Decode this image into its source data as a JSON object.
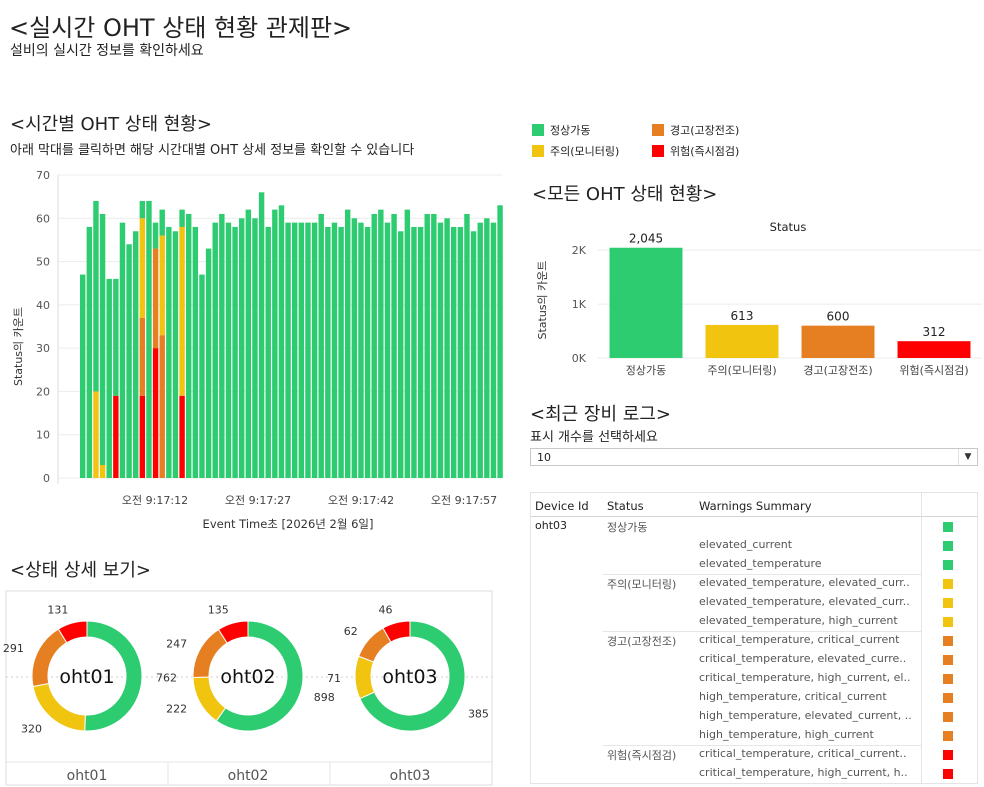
{
  "page": {
    "title": "<실시간 OHT 상태 현황 관제판>",
    "subtitle": "설비의 실시간 정보를 확인하세요"
  },
  "colors": {
    "normal": "#2ecc71",
    "warning": "#f1c40f",
    "fault": "#e67e22",
    "danger": "#ff0000"
  },
  "legend": {
    "items": [
      {
        "label": "정상가동",
        "color": "#2ecc71"
      },
      {
        "label": "경고(고장전조)",
        "color": "#e67e22"
      },
      {
        "label": "주의(모니터링)",
        "color": "#f1c40f"
      },
      {
        "label": "위험(즉시점검)",
        "color": "#ff0000"
      }
    ]
  },
  "timeline": {
    "title": "<시간별 OHT 상태 현황>",
    "description": "아래 막대를 클릭하면 해당 시간대별 OHT 상세 정보를 확인할 수 있습니다",
    "chart_data": {
      "type": "bar",
      "stacked": true,
      "title": "",
      "xlabel": "Event Time초 [2026년 2월 6일]",
      "ylabel": "Status의 카운트",
      "ylim": [
        0,
        70
      ],
      "yticks": [
        0,
        10,
        20,
        30,
        40,
        50,
        60,
        70
      ],
      "xtick_labels": [
        "오전 9:17:12",
        "오전 9:17:27",
        "오전 9:17:42",
        "오전 9:17:57"
      ],
      "series_order": [
        "위험(즉시점검)",
        "경고(고장전조)",
        "주의(모니터링)",
        "정상가동"
      ],
      "bars": [
        [
          0,
          0,
          0,
          47
        ],
        [
          0,
          0,
          0,
          58
        ],
        [
          0,
          0,
          20,
          44
        ],
        [
          0,
          0,
          3,
          58
        ],
        [
          0,
          0,
          0,
          46
        ],
        [
          19,
          0,
          0,
          27
        ],
        [
          0,
          0,
          0,
          59
        ],
        [
          0,
          0,
          0,
          54
        ],
        [
          0,
          0,
          0,
          57
        ],
        [
          19,
          18,
          23,
          4
        ],
        [
          0,
          0,
          0,
          64
        ],
        [
          30,
          23,
          0,
          6
        ],
        [
          0,
          33,
          23,
          6
        ],
        [
          0,
          0,
          0,
          58
        ],
        [
          0,
          0,
          0,
          57
        ],
        [
          19,
          0,
          39,
          4
        ],
        [
          0,
          0,
          0,
          61
        ],
        [
          0,
          0,
          0,
          58
        ],
        [
          0,
          0,
          0,
          47
        ],
        [
          0,
          0,
          0,
          53
        ],
        [
          0,
          0,
          0,
          59
        ],
        [
          0,
          0,
          0,
          61
        ],
        [
          0,
          0,
          0,
          59
        ],
        [
          0,
          0,
          0,
          58
        ],
        [
          0,
          0,
          0,
          60
        ],
        [
          0,
          0,
          0,
          62
        ],
        [
          0,
          0,
          0,
          60
        ],
        [
          0,
          0,
          0,
          66
        ],
        [
          0,
          0,
          0,
          58
        ],
        [
          0,
          0,
          0,
          62
        ],
        [
          0,
          0,
          0,
          63
        ],
        [
          0,
          0,
          0,
          59
        ],
        [
          0,
          0,
          0,
          59
        ],
        [
          0,
          0,
          0,
          59
        ],
        [
          0,
          0,
          0,
          59
        ],
        [
          0,
          0,
          0,
          59
        ],
        [
          0,
          0,
          0,
          61
        ],
        [
          0,
          0,
          0,
          58
        ],
        [
          0,
          0,
          0,
          59
        ],
        [
          0,
          0,
          0,
          58
        ],
        [
          0,
          0,
          0,
          62
        ],
        [
          0,
          0,
          0,
          60
        ],
        [
          0,
          0,
          0,
          59
        ],
        [
          0,
          0,
          0,
          58
        ],
        [
          0,
          0,
          0,
          61
        ],
        [
          0,
          0,
          0,
          62
        ],
        [
          0,
          0,
          0,
          59
        ],
        [
          0,
          0,
          0,
          61
        ],
        [
          0,
          0,
          0,
          57
        ],
        [
          0,
          0,
          0,
          62
        ],
        [
          0,
          0,
          0,
          58
        ],
        [
          0,
          0,
          0,
          58
        ],
        [
          0,
          0,
          0,
          61
        ],
        [
          0,
          0,
          0,
          61
        ],
        [
          0,
          0,
          0,
          59
        ],
        [
          0,
          0,
          0,
          60
        ],
        [
          0,
          0,
          0,
          58
        ],
        [
          0,
          0,
          0,
          58
        ],
        [
          0,
          0,
          0,
          61
        ],
        [
          0,
          0,
          0,
          57
        ],
        [
          0,
          0,
          0,
          59
        ],
        [
          0,
          0,
          0,
          60
        ],
        [
          0,
          0,
          0,
          59
        ],
        [
          0,
          0,
          0,
          63
        ]
      ]
    }
  },
  "overall": {
    "title": "<모든 OHT 상태 현황>",
    "chart_data": {
      "type": "bar",
      "title": "Status",
      "xlabel": "",
      "ylabel": "Status의 카운트",
      "ylim": [
        0,
        2300
      ],
      "ytick_labels": [
        "0K",
        "1K",
        "2K"
      ],
      "yticks": [
        0,
        1000,
        2000
      ],
      "categories": [
        "정상가동",
        "주의(모니터링)",
        "경고(고장전조)",
        "위험(즉시점검)"
      ],
      "values": [
        2045,
        613,
        600,
        312
      ],
      "value_labels": [
        "2,045",
        "613",
        "600",
        "312"
      ]
    }
  },
  "detail": {
    "title": "<상태 상세 보기>",
    "chart_data": [
      {
        "type": "pie",
        "title": "oht01",
        "center_label": "oht01",
        "categories": [
          "정상가동",
          "주의(모니터링)",
          "경고(고장전조)",
          "위험(즉시점검)"
        ],
        "values": [
          762,
          320,
          291,
          131
        ]
      },
      {
        "type": "pie",
        "title": "oht02",
        "center_label": "oht02",
        "categories": [
          "정상가동",
          "주의(모니터링)",
          "경고(고장전조)",
          "위험(즉시점검)"
        ],
        "values": [
          898,
          222,
          247,
          135
        ]
      },
      {
        "type": "pie",
        "title": "oht03",
        "center_label": "oht03",
        "categories": [
          "정상가동",
          "주의(모니터링)",
          "경고(고장전조)",
          "위험(즉시점검)"
        ],
        "values": [
          385,
          71,
          62,
          46
        ]
      }
    ]
  },
  "logs": {
    "title": "<최근 장비 로그>",
    "select_label": "표시 개수를 선택하세요",
    "select_value": "10",
    "columns": [
      "Device Id",
      "Status",
      "Warnings Summary"
    ],
    "rows": [
      {
        "device": "oht03",
        "status": "정상가동",
        "warning": "",
        "color": "#2ecc71"
      },
      {
        "device": "",
        "status": "",
        "warning": "elevated_current",
        "color": "#2ecc71"
      },
      {
        "device": "",
        "status": "",
        "warning": "elevated_temperature",
        "color": "#2ecc71"
      },
      {
        "device": "",
        "status": "주의(모니터링)",
        "warning": "elevated_temperature, elevated_curr..",
        "color": "#f1c40f"
      },
      {
        "device": "",
        "status": "",
        "warning": "elevated_temperature, elevated_curr..",
        "color": "#f1c40f"
      },
      {
        "device": "",
        "status": "",
        "warning": "elevated_temperature, high_current",
        "color": "#f1c40f"
      },
      {
        "device": "",
        "status": "경고(고장전조)",
        "warning": "critical_temperature, critical_current",
        "color": "#e67e22"
      },
      {
        "device": "",
        "status": "",
        "warning": "critical_temperature, elevated_curre..",
        "color": "#e67e22"
      },
      {
        "device": "",
        "status": "",
        "warning": "critical_temperature, high_current, el..",
        "color": "#e67e22"
      },
      {
        "device": "",
        "status": "",
        "warning": "high_temperature, critical_current",
        "color": "#e67e22"
      },
      {
        "device": "",
        "status": "",
        "warning": "high_temperature, elevated_current, ..",
        "color": "#e67e22"
      },
      {
        "device": "",
        "status": "",
        "warning": "high_temperature, high_current",
        "color": "#e67e22"
      },
      {
        "device": "",
        "status": "위험(즉시점검)",
        "warning": "critical_temperature, critical_current..",
        "color": "#ff0000"
      },
      {
        "device": "",
        "status": "",
        "warning": "critical_temperature, high_current, h..",
        "color": "#ff0000"
      }
    ]
  }
}
